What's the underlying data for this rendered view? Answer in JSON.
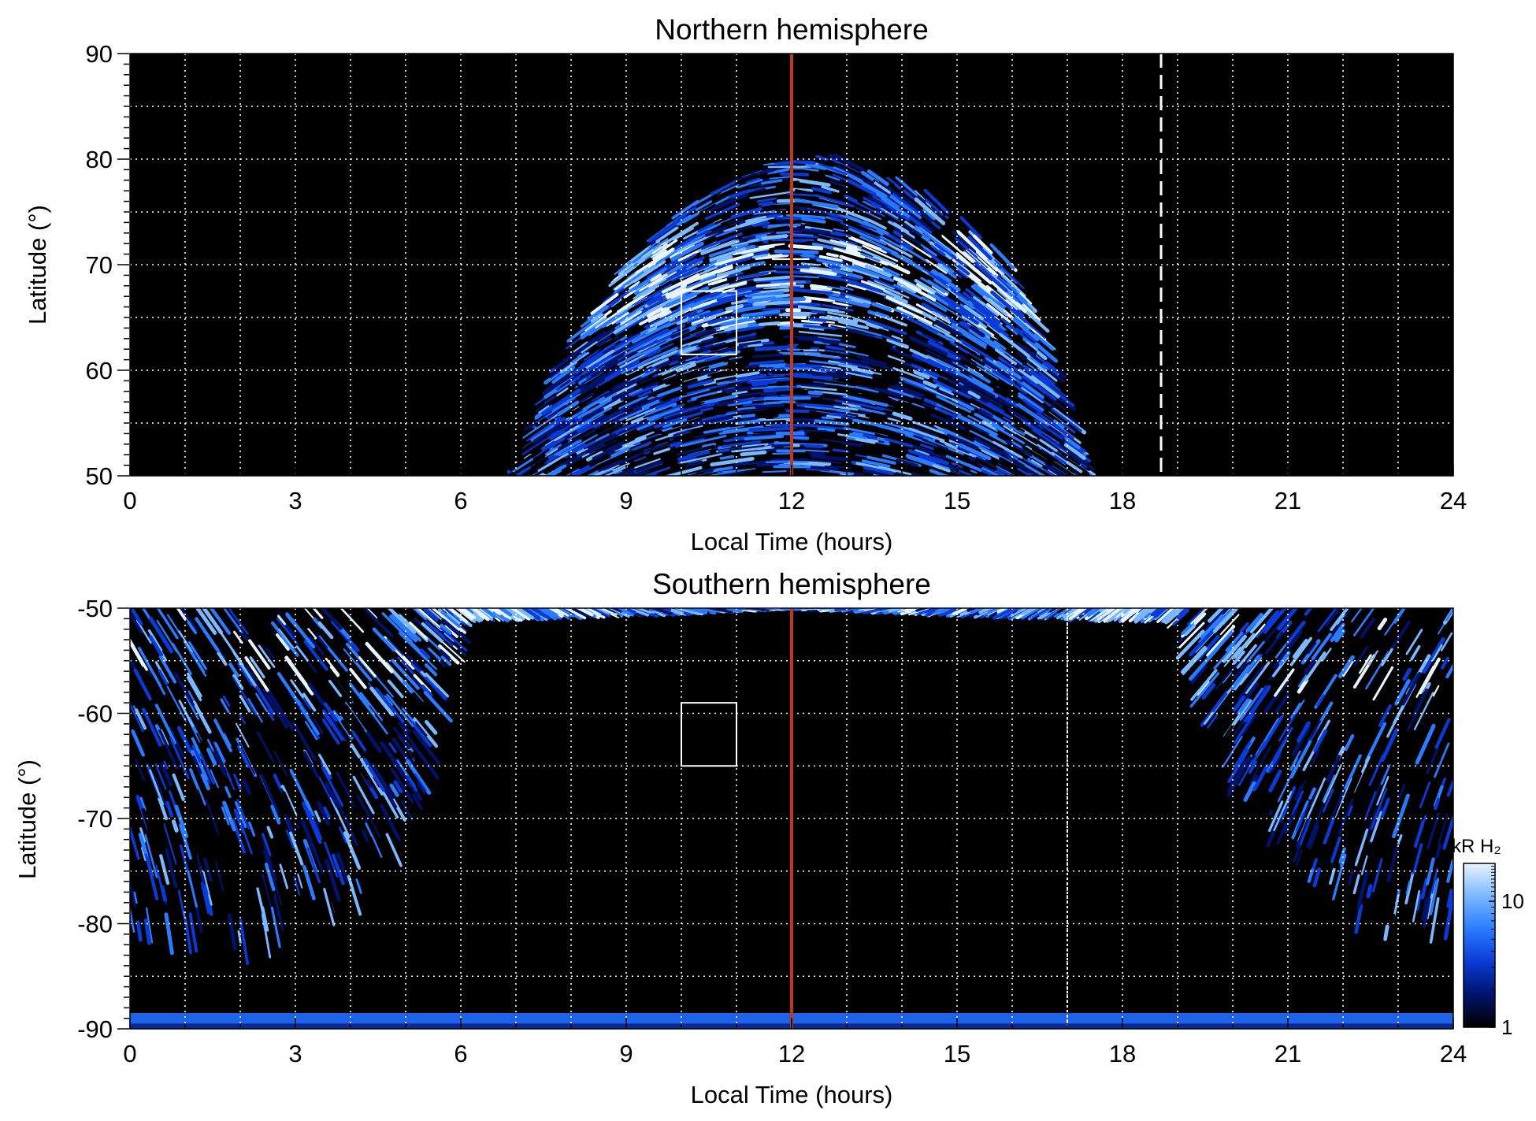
{
  "chart_data": [
    {
      "type": "heatmap",
      "title": "Northern hemisphere",
      "xlabel": "Local Time (hours)",
      "ylabel": "Latitude (°)",
      "xlim": [
        0,
        24
      ],
      "ylim": [
        50,
        90
      ],
      "x_ticks": [
        0,
        3,
        6,
        9,
        12,
        15,
        18,
        21,
        24
      ],
      "y_ticks": [
        50,
        60,
        70,
        80,
        90
      ],
      "grid": true,
      "emission_extent": {
        "outer_boundary": [
          {
            "lt": 7.0,
            "lat": 50
          },
          {
            "lt": 7.5,
            "lat": 56
          },
          {
            "lt": 8.0,
            "lat": 62
          },
          {
            "lt": 9.0,
            "lat": 70
          },
          {
            "lt": 10.0,
            "lat": 75
          },
          {
            "lt": 11.0,
            "lat": 78
          },
          {
            "lt": 11.5,
            "lat": 80
          },
          {
            "lt": 13.0,
            "lat": 80
          },
          {
            "lt": 14.0,
            "lat": 78
          },
          {
            "lt": 15.0,
            "lat": 75
          },
          {
            "lt": 16.0,
            "lat": 70
          },
          {
            "lt": 16.5,
            "lat": 64
          },
          {
            "lt": 17.0,
            "lat": 56
          },
          {
            "lt": 17.3,
            "lat": 50
          }
        ],
        "bright_oval_lat": [
          64,
          72
        ]
      },
      "noon_line_lt": 12,
      "dashed_line_lt": 18.7,
      "box": {
        "lt": [
          10.0,
          11.0
        ],
        "lat": [
          61.5,
          67.5
        ]
      }
    },
    {
      "type": "heatmap",
      "title": "Southern hemisphere",
      "xlabel": "Local Time (hours)",
      "ylabel": "Latitude (°)",
      "xlim": [
        0,
        24
      ],
      "ylim": [
        -90,
        -50
      ],
      "x_ticks": [
        0,
        3,
        6,
        9,
        12,
        15,
        18,
        21,
        24
      ],
      "y_ticks": [
        -90,
        -80,
        -70,
        -60,
        -50
      ],
      "grid": true,
      "emission_extent": {
        "outer_boundary": [
          {
            "lt": 0.0,
            "lat": -81
          },
          {
            "lt": 2.0,
            "lat": -83
          },
          {
            "lt": 4.0,
            "lat": -78
          },
          {
            "lt": 5.0,
            "lat": -72
          },
          {
            "lt": 5.5,
            "lat": -64
          },
          {
            "lt": 6.0,
            "lat": -50
          },
          {
            "lt": 19.0,
            "lat": -50
          },
          {
            "lt": 19.7,
            "lat": -62
          },
          {
            "lt": 20.5,
            "lat": -71
          },
          {
            "lt": 22.0,
            "lat": -79
          },
          {
            "lt": 23.0,
            "lat": -83
          },
          {
            "lt": 24.0,
            "lat": -81
          }
        ],
        "bright_bands_lt": [
          6.5,
          18.0
        ]
      },
      "noon_line_lt": 12,
      "dashed_line_lt": 17.0,
      "box": {
        "lt": [
          10.0,
          11.0
        ],
        "lat": [
          -65,
          -59
        ]
      }
    }
  ],
  "colorbar": {
    "label": "kR H₂",
    "ticks": [
      "1",
      "10"
    ],
    "scale": "log",
    "range": [
      1,
      20
    ],
    "colors": [
      "#000000",
      "#00136b",
      "#0a3bd6",
      "#2a7bff",
      "#7ab8ff",
      "#e8f4ff"
    ]
  },
  "colors": {
    "noon_line": "#c0391b",
    "marker_lines": "#ffffff",
    "grid": "#ffffff",
    "background": "#000000"
  }
}
